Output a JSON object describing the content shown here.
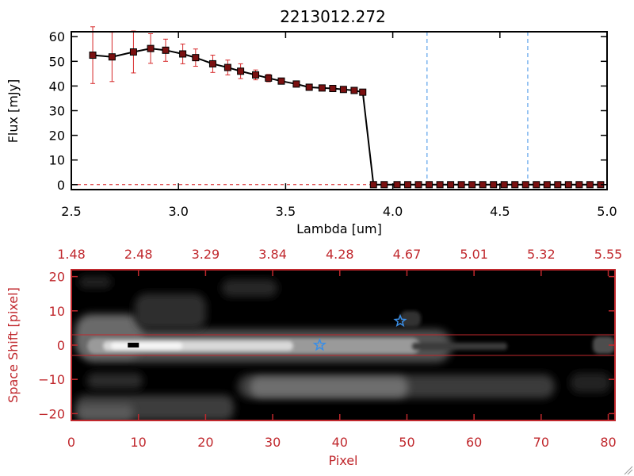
{
  "colors": {
    "axis_black": "#000000",
    "axis_red": "#c0282d",
    "error_bar": "#d62728",
    "marker_fill": "#7a1010",
    "dash_blue": "#3a8ee6",
    "star_blue": "#3a8ee6",
    "image_bg": "#000000"
  },
  "chart_data": [
    {
      "type": "line",
      "title": "2213012.272",
      "xlabel": "Lambda [um]",
      "ylabel": "Flux [mJy]",
      "xlim": [
        2.5,
        5.0
      ],
      "ylim": [
        -2,
        62
      ],
      "x_ticks": [
        2.5,
        3.0,
        3.5,
        4.0,
        4.5,
        5.0
      ],
      "x_tick_labels": [
        "2.5",
        "3.0",
        "3.5",
        "4.0",
        "4.5",
        "5.0"
      ],
      "y_ticks": [
        0,
        10,
        20,
        30,
        40,
        50,
        60
      ],
      "y_tick_labels": [
        "0",
        "10",
        "20",
        "30",
        "40",
        "50",
        "60"
      ],
      "series": [
        {
          "x": [
            2.6,
            2.69,
            2.79,
            2.87,
            2.94,
            3.02,
            3.08,
            3.16,
            3.23,
            3.29,
            3.36,
            3.42,
            3.48,
            3.55,
            3.61,
            3.67,
            3.72,
            3.77,
            3.82,
            3.86,
            3.91,
            3.96,
            4.02,
            4.07,
            4.12,
            4.17,
            4.22,
            4.27,
            4.32,
            4.37,
            4.42,
            4.47,
            4.52,
            4.57,
            4.62,
            4.67,
            4.72,
            4.77,
            4.82,
            4.87,
            4.92,
            4.97
          ],
          "y": [
            52.5,
            51.8,
            53.8,
            55.2,
            54.5,
            53.0,
            51.5,
            49.0,
            47.5,
            46.0,
            44.5,
            43.2,
            42.0,
            40.8,
            39.5,
            39.2,
            39.0,
            38.6,
            38.2,
            37.5,
            0,
            0,
            0,
            0,
            0,
            0,
            0,
            0,
            0,
            0,
            0,
            0,
            0,
            0,
            0,
            0,
            0,
            0,
            0,
            0,
            0,
            0
          ],
          "yerr": [
            11.5,
            10.0,
            8.5,
            6.0,
            4.5,
            4.0,
            3.5,
            3.5,
            3.0,
            3.0,
            2.0,
            1.5,
            1.0,
            1.0,
            1.0,
            0.8,
            0.8,
            0.8,
            0.8,
            0.8,
            0,
            0,
            0,
            0,
            0,
            0,
            0,
            0,
            0,
            0,
            0,
            0,
            0,
            0,
            0,
            0,
            0,
            0,
            0,
            0,
            0,
            0
          ]
        }
      ],
      "vlines": [
        4.16,
        4.63
      ],
      "hline_dashed": 0,
      "grid": false
    },
    {
      "type": "heatmap",
      "xlabel": "Pixel",
      "ylabel": "Space Shift [pixel]",
      "xlim": [
        0,
        81
      ],
      "ylim": [
        -22,
        22
      ],
      "x_ticks": [
        0,
        10,
        20,
        30,
        40,
        50,
        60,
        70,
        80
      ],
      "x_tick_labels": [
        "0",
        "10",
        "20",
        "30",
        "40",
        "50",
        "60",
        "70",
        "80"
      ],
      "y_ticks": [
        -20,
        -10,
        0,
        10,
        20
      ],
      "y_tick_labels": [
        "−20",
        "−10",
        "0",
        "10",
        "20"
      ],
      "top_axis_ticks": [
        0,
        10,
        20,
        30,
        40,
        50,
        60,
        70,
        80
      ],
      "top_axis_labels": [
        "1.48",
        "2.48",
        "3.29",
        "3.84",
        "4.28",
        "4.67",
        "5.01",
        "5.32",
        "5.55"
      ],
      "aperture_lines": [
        3,
        -3
      ],
      "stars": [
        {
          "x": 37,
          "y": 0
        },
        {
          "x": 49,
          "y": 7
        }
      ],
      "peak_marker": {
        "x": 9,
        "y": 0
      }
    }
  ]
}
